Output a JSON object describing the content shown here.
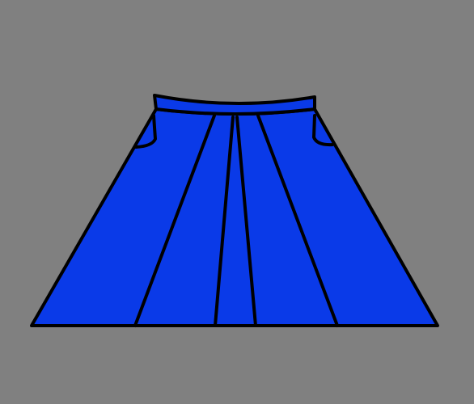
{
  "colors": {
    "background": "#808080",
    "skirt_fill": "#0a3ae8",
    "outline": "#000000"
  },
  "illustration": {
    "subject": "skirt-icon"
  }
}
